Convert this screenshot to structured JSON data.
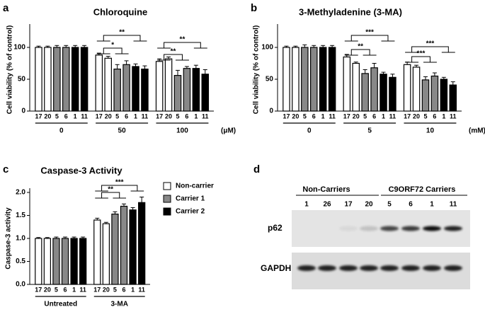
{
  "chart_data": [
    {
      "type": "bar",
      "panel": "a",
      "title": "Chloroquine",
      "y_label": "Cell viability (% of control)",
      "categories": [
        "17",
        "20",
        "5",
        "6",
        "1",
        "11",
        "17",
        "20",
        "5",
        "6",
        "1",
        "11",
        "17",
        "20",
        "5",
        "6",
        "1",
        "11"
      ],
      "groups": [
        "0",
        "50",
        "100"
      ],
      "unit": "(μM)",
      "values": [
        100,
        100,
        100,
        100,
        100,
        100,
        88,
        83,
        66,
        73,
        70,
        66,
        78,
        82,
        56,
        67,
        67,
        58
      ],
      "errors": [
        2,
        2,
        3,
        3,
        3,
        3,
        3,
        3,
        7,
        6,
        4,
        5,
        4,
        3,
        8,
        3,
        5,
        7
      ],
      "colors": [
        "#ffffff",
        "#ffffff",
        "#888888",
        "#888888",
        "#000000",
        "#000000",
        "#ffffff",
        "#ffffff",
        "#888888",
        "#888888",
        "#000000",
        "#000000",
        "#ffffff",
        "#ffffff",
        "#888888",
        "#888888",
        "#000000",
        "#000000"
      ],
      "ylim": [
        0,
        130
      ],
      "yticks": [
        0,
        50,
        100
      ],
      "significance": [
        "**",
        "*",
        "**",
        "**"
      ]
    },
    {
      "type": "bar",
      "panel": "b",
      "title": "3-Methyladenine (3-MA)",
      "y_label": "Cell viability (% of control)",
      "categories": [
        "17",
        "20",
        "5",
        "6",
        "1",
        "11",
        "17",
        "20",
        "5",
        "6",
        "1",
        "11",
        "17",
        "20",
        "5",
        "6",
        "1",
        "11"
      ],
      "groups": [
        "0",
        "5",
        "10"
      ],
      "unit": "(mM)",
      "values": [
        100,
        100,
        100,
        100,
        100,
        100,
        85,
        75,
        59,
        68,
        58,
        53,
        73,
        69,
        49,
        55,
        50,
        41
      ],
      "errors": [
        2,
        2,
        4,
        3,
        3,
        3,
        4,
        2,
        6,
        7,
        3,
        5,
        4,
        3,
        5,
        5,
        3,
        5
      ],
      "colors": [
        "#ffffff",
        "#ffffff",
        "#888888",
        "#888888",
        "#000000",
        "#000000",
        "#ffffff",
        "#ffffff",
        "#888888",
        "#888888",
        "#000000",
        "#000000",
        "#ffffff",
        "#ffffff",
        "#888888",
        "#888888",
        "#000000",
        "#000000"
      ],
      "ylim": [
        0,
        130
      ],
      "yticks": [
        0,
        50,
        100
      ],
      "significance": [
        "***",
        "**",
        "***",
        "***"
      ]
    },
    {
      "type": "bar",
      "panel": "c",
      "title": "Caspase-3 Activity",
      "y_label": "Caspase-3 activity",
      "categories": [
        "17",
        "20",
        "5",
        "6",
        "1",
        "11",
        "17",
        "20",
        "5",
        "6",
        "1",
        "11"
      ],
      "groups": [
        "Untreated",
        "3-MA"
      ],
      "values": [
        1.0,
        1.0,
        1.0,
        1.0,
        1.0,
        1.0,
        1.4,
        1.32,
        1.53,
        1.7,
        1.62,
        1.78
      ],
      "errors": [
        0.02,
        0.02,
        0.03,
        0.03,
        0.03,
        0.03,
        0.04,
        0.03,
        0.05,
        0.05,
        0.05,
        0.12
      ],
      "colors": [
        "#ffffff",
        "#ffffff",
        "#888888",
        "#888888",
        "#000000",
        "#000000",
        "#ffffff",
        "#ffffff",
        "#888888",
        "#888888",
        "#000000",
        "#000000"
      ],
      "ylim": [
        0,
        2.0
      ],
      "yticks": [
        {
          "value": 0,
          "label": "0.0"
        },
        {
          "value": 0.5,
          "label": "0.5"
        },
        {
          "value": 1,
          "label": "1.0"
        },
        {
          "value": 1.5,
          "label": "1.5"
        },
        {
          "value": 2,
          "label": "2.0"
        }
      ],
      "legend": [
        {
          "name": "Non-carrier",
          "color": "#ffffff"
        },
        {
          "name": "Carrier 1",
          "color": "#888888"
        },
        {
          "name": "Carrier 2",
          "color": "#000000"
        }
      ],
      "significance": [
        "***",
        "**"
      ]
    }
  ],
  "blot": {
    "panel": "d",
    "group_labels": [
      "Non-Carriers",
      "C9ORF72 Carriers"
    ],
    "lanes": [
      "1",
      "26",
      "17",
      "20",
      "5",
      "6",
      "1",
      "11"
    ],
    "rows": [
      "p62",
      "GAPDH"
    ]
  }
}
